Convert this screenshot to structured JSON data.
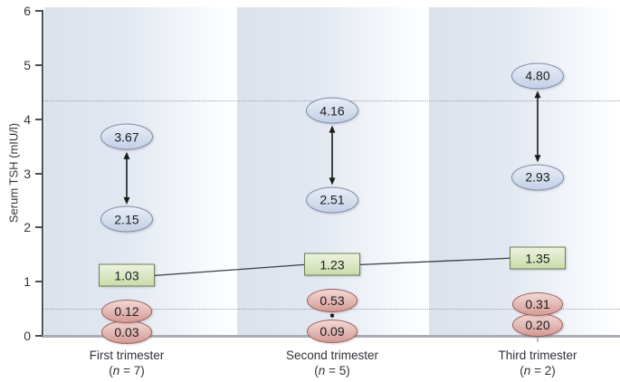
{
  "chart_data": {
    "type": "scatter",
    "title": "",
    "ylabel": "Serum TSH (mIU/l)",
    "ylim": [
      0,
      6
    ],
    "yticks": [
      0,
      1,
      2,
      3,
      4,
      5,
      6
    ],
    "grid": false,
    "legend_position": "none",
    "reference_lines": {
      "style": "dotted",
      "color": "#98a0a9",
      "values": [
        4.35,
        0.5
      ]
    },
    "series_styles": {
      "upper_limits": {
        "marker": "blue-ellipse",
        "fill": "#c9d5e8",
        "border": "#7e8aa8",
        "link": "double-headed-arrow-within-group"
      },
      "median": {
        "marker": "green-box",
        "fill": "#d8e6bd",
        "border": "#6e7e57",
        "link": "line-across-groups"
      },
      "lower_limits": {
        "marker": "red-ellipse",
        "fill": "#e2b4ae",
        "border": "#9d5f5b"
      }
    },
    "groups": [
      {
        "label": "First trimester",
        "n": "(n = 7)",
        "upper": [
          3.67,
          2.15
        ],
        "median": 1.03,
        "lower": [
          0.12,
          0.03
        ]
      },
      {
        "label": "Second trimester",
        "n": "(n = 5)",
        "upper": [
          4.16,
          2.51
        ],
        "median": 1.23,
        "lower": [
          0.53,
          0.09
        ]
      },
      {
        "label": "Third trimester",
        "n": "(n = 2)",
        "upper": [
          4.8,
          2.93
        ],
        "median": 1.35,
        "lower": [
          0.31,
          0.2
        ]
      }
    ]
  }
}
